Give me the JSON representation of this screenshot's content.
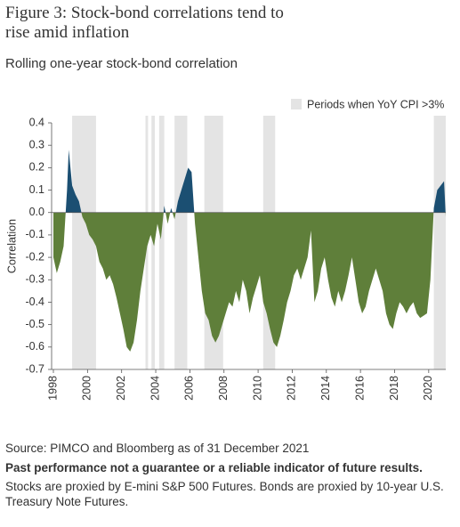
{
  "chart_data": {
    "type": "area",
    "title": "Figure 3: Stock-bond correlations tend to rise amid inflation",
    "subtitle": "Rolling one-year stock-bond correlation",
    "y_label": "Correlation",
    "shade_label": "Periods when YoY CPI >3%",
    "shade_color": "#e4e4e4",
    "positive_color": "#1b4f72",
    "negative_color": "#5f7f3a",
    "shaded_periods": [
      [
        1999.1,
        2000.5
      ],
      [
        2003.4,
        2003.55
      ],
      [
        2003.75,
        2003.95
      ],
      [
        2004.2,
        2004.5
      ],
      [
        2005.1,
        2005.85
      ],
      [
        2006.85,
        2007.95
      ],
      [
        2010.3,
        2011.0
      ],
      [
        2020.3,
        2021.0
      ]
    ],
    "xlim": [
      1998,
      2021
    ],
    "xticks": [
      1998,
      2000,
      2002,
      2004,
      2006,
      2008,
      2010,
      2012,
      2014,
      2016,
      2018,
      2020
    ],
    "ylim": [
      -0.7,
      0.4
    ],
    "yticks": [
      0.4,
      0.3,
      0.2,
      0.1,
      {
        "value": 0,
        "label": "0.0"
      },
      -0.1,
      -0.2,
      -0.3,
      -0.4,
      -0.5,
      -0.6,
      -0.7
    ],
    "x": [
      1998.0,
      1998.2,
      1998.4,
      1998.6,
      1998.8,
      1998.9,
      1999.1,
      1999.3,
      1999.5,
      1999.7,
      1999.9,
      2000.1,
      2000.3,
      2000.5,
      2000.7,
      2000.9,
      2001.1,
      2001.3,
      2001.5,
      2001.7,
      2001.9,
      2002.1,
      2002.3,
      2002.5,
      2002.7,
      2002.9,
      2003.1,
      2003.3,
      2003.5,
      2003.7,
      2003.9,
      2004.1,
      2004.3,
      2004.5,
      2004.7,
      2004.9,
      2005.1,
      2005.3,
      2005.5,
      2005.7,
      2005.9,
      2006.1,
      2006.3,
      2006.5,
      2006.7,
      2006.9,
      2007.1,
      2007.3,
      2007.5,
      2007.7,
      2007.9,
      2008.1,
      2008.3,
      2008.5,
      2008.7,
      2008.9,
      2009.1,
      2009.3,
      2009.5,
      2009.7,
      2009.9,
      2010.1,
      2010.3,
      2010.5,
      2010.7,
      2010.9,
      2011.1,
      2011.3,
      2011.5,
      2011.7,
      2011.9,
      2012.1,
      2012.3,
      2012.5,
      2012.7,
      2012.9,
      2013.1,
      2013.3,
      2013.5,
      2013.7,
      2013.9,
      2014.1,
      2014.3,
      2014.5,
      2014.7,
      2014.9,
      2015.1,
      2015.3,
      2015.5,
      2015.7,
      2015.9,
      2016.1,
      2016.3,
      2016.5,
      2016.7,
      2016.9,
      2017.1,
      2017.3,
      2017.5,
      2017.7,
      2017.9,
      2018.1,
      2018.3,
      2018.5,
      2018.7,
      2018.9,
      2019.1,
      2019.3,
      2019.5,
      2019.7,
      2019.9,
      2020.1,
      2020.3,
      2020.5,
      2020.7,
      2020.9,
      2021.0
    ],
    "values": [
      -0.2,
      -0.27,
      -0.22,
      -0.15,
      0.1,
      0.28,
      0.12,
      0.08,
      0.05,
      -0.02,
      -0.05,
      -0.1,
      -0.12,
      -0.15,
      -0.22,
      -0.25,
      -0.3,
      -0.28,
      -0.32,
      -0.38,
      -0.45,
      -0.52,
      -0.6,
      -0.62,
      -0.58,
      -0.48,
      -0.35,
      -0.25,
      -0.15,
      -0.1,
      -0.15,
      -0.05,
      -0.12,
      0.03,
      -0.05,
      0.02,
      -0.03,
      0.05,
      0.1,
      0.15,
      0.2,
      0.18,
      -0.05,
      -0.2,
      -0.35,
      -0.45,
      -0.48,
      -0.55,
      -0.58,
      -0.55,
      -0.5,
      -0.45,
      -0.4,
      -0.42,
      -0.35,
      -0.4,
      -0.3,
      -0.35,
      -0.45,
      -0.38,
      -0.33,
      -0.28,
      -0.4,
      -0.45,
      -0.52,
      -0.58,
      -0.6,
      -0.55,
      -0.48,
      -0.4,
      -0.35,
      -0.28,
      -0.25,
      -0.3,
      -0.25,
      -0.2,
      -0.08,
      -0.4,
      -0.35,
      -0.25,
      -0.2,
      -0.3,
      -0.38,
      -0.42,
      -0.35,
      -0.4,
      -0.35,
      -0.28,
      -0.2,
      -0.3,
      -0.4,
      -0.45,
      -0.42,
      -0.35,
      -0.3,
      -0.25,
      -0.3,
      -0.35,
      -0.45,
      -0.5,
      -0.52,
      -0.45,
      -0.4,
      -0.42,
      -0.45,
      -0.42,
      -0.4,
      -0.45,
      -0.47,
      -0.46,
      -0.45,
      -0.3,
      0.02,
      0.1,
      0.12,
      0.14,
      -0.02
    ],
    "source": "Source: PIMCO and Bloomberg as of 31 December 2021",
    "disclaimer": "Past performance not a guarantee or a reliable indicator of future results.",
    "note": "Stocks are proxied by E-mini S&P 500 Futures. Bonds are proxied by 10-year U.S. Treasury Note Futures."
  }
}
